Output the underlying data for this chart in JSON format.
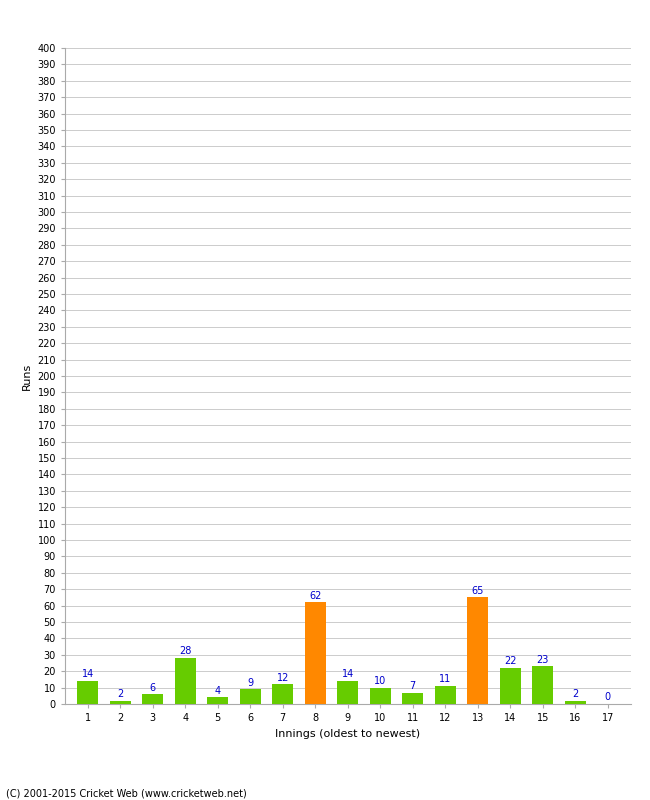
{
  "xlabel": "Innings (oldest to newest)",
  "ylabel": "Runs",
  "categories": [
    1,
    2,
    3,
    4,
    5,
    6,
    7,
    8,
    9,
    10,
    11,
    12,
    13,
    14,
    15,
    16,
    17
  ],
  "values": [
    14,
    2,
    6,
    28,
    4,
    9,
    12,
    62,
    14,
    10,
    7,
    11,
    65,
    22,
    23,
    2,
    0
  ],
  "colors": [
    "#66cc00",
    "#66cc00",
    "#66cc00",
    "#66cc00",
    "#66cc00",
    "#66cc00",
    "#66cc00",
    "#ff8800",
    "#66cc00",
    "#66cc00",
    "#66cc00",
    "#66cc00",
    "#ff8800",
    "#66cc00",
    "#66cc00",
    "#66cc00",
    "#66cc00"
  ],
  "ylim": [
    0,
    400
  ],
  "yticks": [
    0,
    10,
    20,
    30,
    40,
    50,
    60,
    70,
    80,
    90,
    100,
    110,
    120,
    130,
    140,
    150,
    160,
    170,
    180,
    190,
    200,
    210,
    220,
    230,
    240,
    250,
    260,
    270,
    280,
    290,
    300,
    310,
    320,
    330,
    340,
    350,
    360,
    370,
    380,
    390,
    400
  ],
  "label_color": "#0000cc",
  "label_fontsize": 7,
  "axis_fontsize": 7,
  "ylabel_fontsize": 8,
  "xlabel_fontsize": 8,
  "footer": "(C) 2001-2015 Cricket Web (www.cricketweb.net)",
  "background_color": "#ffffff",
  "grid_color": "#cccccc"
}
